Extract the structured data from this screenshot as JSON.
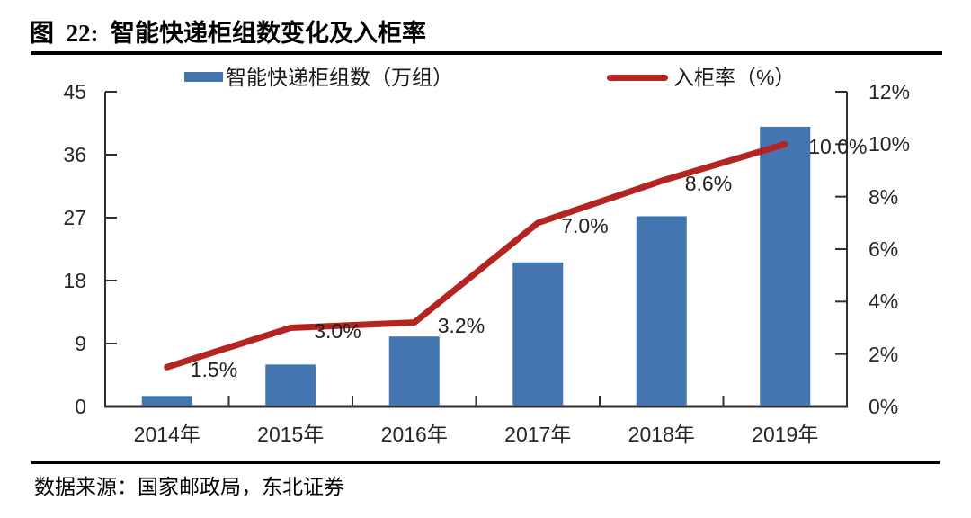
{
  "figure": {
    "title": "图  22:  智能快递柜组数变化及入柜率",
    "source": "数据来源：国家邮政局，东北证券"
  },
  "legend": {
    "bar_label": "智能快递柜组数（万组）",
    "line_label": "入柜率（%）"
  },
  "chart_data": {
    "type": "combo-bar-line",
    "categories": [
      "2014年",
      "2015年",
      "2016年",
      "2017年",
      "2018年",
      "2019年"
    ],
    "series": [
      {
        "name": "智能快递柜组数（万组）",
        "type": "bar",
        "axis": "left",
        "values": [
          1.5,
          6.0,
          10.0,
          20.6,
          27.2,
          40.0
        ]
      },
      {
        "name": "入柜率（%）",
        "type": "line",
        "axis": "right",
        "values": [
          1.5,
          3.0,
          3.2,
          7.0,
          8.6,
          10.0
        ],
        "labels": [
          "1.5%",
          "3.0%",
          "3.2%",
          "7.0%",
          "8.6%",
          "10.0%"
        ]
      }
    ],
    "left_axis": {
      "min": 0,
      "max": 45,
      "ticks": [
        "0",
        "9",
        "18",
        "27",
        "36",
        "45"
      ]
    },
    "right_axis": {
      "min": 0,
      "max": 12,
      "ticks": [
        "0%",
        "2%",
        "4%",
        "6%",
        "8%",
        "10%",
        "12%"
      ]
    },
    "grid": false,
    "legend_position": "top",
    "colors": {
      "bar": "#4376b1",
      "line": "#b42420",
      "axis": "#303030"
    }
  }
}
